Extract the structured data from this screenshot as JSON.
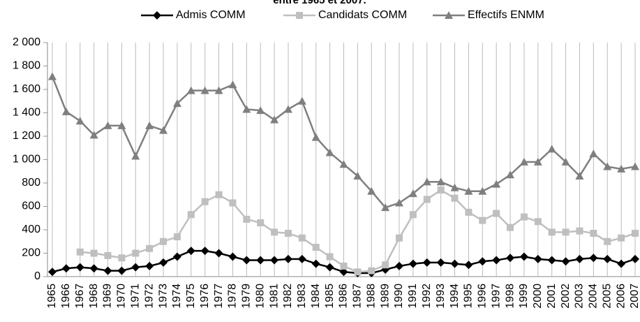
{
  "chart_data": {
    "type": "line",
    "title": "entre 1965 et 2007.",
    "categories": [
      "1965",
      "1966",
      "1967",
      "1968",
      "1969",
      "1970",
      "1971",
      "1972",
      "1973",
      "1974",
      "1975",
      "1976",
      "1977",
      "1978",
      "1979",
      "1980",
      "1981",
      "1982",
      "1983",
      "1984",
      "1985",
      "1986",
      "1987",
      "1988",
      "1989",
      "1990",
      "1991",
      "1992",
      "1993",
      "1994",
      "1995",
      "1996",
      "1997",
      "1998",
      "1999",
      "2000",
      "2001",
      "2002",
      "2003",
      "2004",
      "2005",
      "2006",
      "2007"
    ],
    "series": [
      {
        "name": "Admis COMM",
        "color": "#000000",
        "marker": "diamond",
        "values": [
          40,
          70,
          80,
          70,
          50,
          50,
          80,
          90,
          120,
          170,
          220,
          220,
          200,
          170,
          140,
          140,
          140,
          150,
          150,
          110,
          80,
          40,
          30,
          30,
          60,
          90,
          110,
          120,
          120,
          110,
          100,
          130,
          140,
          160,
          170,
          150,
          140,
          130,
          150,
          160,
          150,
          110,
          150
        ]
      },
      {
        "name": "Candidats COMM",
        "color": "#bfbfbf",
        "marker": "square",
        "values": [
          null,
          null,
          210,
          200,
          180,
          160,
          200,
          240,
          300,
          340,
          530,
          640,
          700,
          630,
          490,
          460,
          380,
          370,
          330,
          250,
          170,
          90,
          40,
          50,
          100,
          330,
          530,
          660,
          740,
          670,
          550,
          480,
          540,
          420,
          510,
          470,
          380,
          380,
          390,
          370,
          300,
          330,
          370
        ]
      },
      {
        "name": "Effectifs ENMM",
        "color": "#7f7f7f",
        "marker": "triangle",
        "values": [
          1710,
          1410,
          1330,
          1210,
          1290,
          1290,
          1030,
          1290,
          1250,
          1480,
          1590,
          1590,
          1590,
          1640,
          1430,
          1420,
          1340,
          1430,
          1500,
          1190,
          1060,
          960,
          860,
          730,
          590,
          630,
          710,
          810,
          810,
          760,
          730,
          730,
          790,
          870,
          980,
          980,
          1090,
          980,
          860,
          1050,
          940,
          920,
          940
        ]
      }
    ],
    "ylim": [
      0,
      2000
    ],
    "yticks": [
      0,
      200,
      400,
      600,
      800,
      {
        "value": 1000,
        "label": "1 000"
      },
      {
        "value": 1200,
        "label": "1 200"
      },
      {
        "value": 1400,
        "label": "1 400"
      },
      {
        "value": 1600,
        "label": "1 600"
      },
      {
        "value": 1800,
        "label": "1 800"
      },
      {
        "value": 2000,
        "label": "2 000"
      }
    ],
    "grid": "x"
  }
}
